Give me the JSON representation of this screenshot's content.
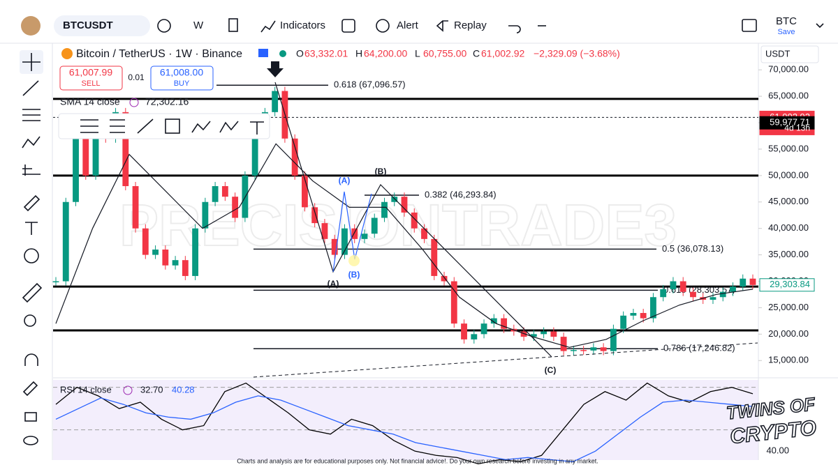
{
  "toolbar": {
    "symbol": "BTCUSDT",
    "interval": "W",
    "indicators": "Indicators",
    "alert": "Alert",
    "replay": "Replay",
    "account": "BTC",
    "save": "Save"
  },
  "legend": {
    "title": "Bitcoin / TetherUS · 1W · Binance",
    "o": "O",
    "open": "63,332.01",
    "h": "H",
    "high": "64,200.00",
    "l": "L",
    "low": "60,755.00",
    "c": "C",
    "close": "61,002.92",
    "change": "−2,329.09 (−3.68%)"
  },
  "trade": {
    "sell_price": "61,007.99",
    "sell": "SELL",
    "qty": "0.01",
    "buy_price": "61,008.00",
    "buy": "BUY"
  },
  "sma": {
    "label": "SMA 14 close",
    "value": "72,302.16"
  },
  "rsi": {
    "label": "RSI 14 close",
    "value1": "32.70",
    "value2": "40.28"
  },
  "currency": "USDT",
  "countdown": "4d 13h",
  "watermark": "PRECISIONTRADE3",
  "logo": [
    "TWINS OF",
    "CRYPTO"
  ],
  "wave_labels": [
    "(A)",
    "(B)",
    "(C)",
    "(A)",
    "(B)"
  ],
  "disclaimer": "Charts and analysis are for educational purposes only. Not financial advice!. Do your own research before investing in any market.",
  "chart_data": [
    {
      "type": "candlestick",
      "values": [
        30000,
        45000,
        58000,
        50000,
        60000,
        57000,
        62000,
        48000,
        40000,
        35000,
        36000,
        33000,
        34000,
        31000,
        40000,
        45000,
        48000,
        46000,
        42000,
        50000,
        60000,
        62000,
        66000,
        57000,
        50000,
        44000,
        41000,
        38000,
        35000,
        40000,
        38000,
        39000,
        42000,
        45000,
        46000,
        43000,
        40000,
        38000,
        31000,
        30000,
        22000,
        19000,
        20000,
        22000,
        23000,
        21000,
        20500,
        19500,
        20000,
        20500,
        19500,
        16800,
        17000,
        16900,
        17500,
        16800,
        21000,
        23500,
        24000,
        23000,
        27000,
        28500,
        30000,
        28000,
        27000,
        26500,
        27000,
        28000,
        29000,
        30500,
        29300
      ],
      "up_color": "#089981",
      "down_color": "#f23645",
      "sma": [
        22000,
        40000,
        54000,
        47000,
        40000,
        44000,
        56000,
        49000,
        44000,
        44000,
        36000,
        27000,
        22000,
        19500,
        17500,
        19000,
        22500,
        25500,
        27500,
        28500
      ],
      "ylim": [
        12000,
        75300
      ],
      "yticks": [
        {
          "value": 15000,
          "label": "15,000.00"
        },
        {
          "value": 20000,
          "label": "20,000.00"
        },
        {
          "value": 25000,
          "label": "25,000.00"
        },
        {
          "value": 30000,
          "label": "30,000.00"
        },
        {
          "value": 35000,
          "label": "35,000.00"
        },
        {
          "value": 40000,
          "label": "40,000.00"
        },
        {
          "value": 45000,
          "label": "45,000.00"
        },
        {
          "value": 50000,
          "label": "50,000.00"
        },
        {
          "value": 55000,
          "label": "55,000.00"
        },
        {
          "value": 60000,
          "label": "60,000.00"
        },
        {
          "value": 65000,
          "label": "65,000.00"
        },
        {
          "value": 70000,
          "label": "70,000.00"
        }
      ],
      "hlines": [
        64500,
        50000,
        29000,
        20700
      ],
      "levels": [
        {
          "value": 67096.57,
          "label": "0.618 (67,096.57)"
        },
        {
          "value": 46293.84,
          "label": "0.382 (46,293.84)"
        },
        {
          "value": 36078.13,
          "label": "0.5 (36,078.13)"
        },
        {
          "value": 28303.57,
          "label": "0.618 (28,303.57)"
        },
        {
          "value": 17246.82,
          "label": "0.786 (17,246.82)"
        }
      ],
      "price_labels": [
        {
          "value": 61002.92,
          "label": "61,002.92",
          "color": "#f23645"
        },
        {
          "value": 59977.71,
          "label": "59,977.71",
          "color": "#000000"
        },
        {
          "value": 29303.84,
          "label": "29,303.84",
          "color": "#089981"
        }
      ]
    },
    {
      "type": "line",
      "series": [
        {
          "color": "#000000",
          "values": [
            62,
            70,
            66,
            60,
            63,
            55,
            50,
            52,
            68,
            72,
            65,
            58,
            50,
            48,
            55,
            52,
            45,
            40,
            38,
            37,
            34,
            36,
            35,
            38,
            50,
            62,
            68,
            64,
            72,
            66,
            63,
            68,
            70,
            67
          ]
        },
        {
          "color": "#2962ff",
          "values": [
            55,
            60,
            65,
            62,
            58,
            56,
            55,
            58,
            63,
            66,
            64,
            60,
            56,
            52,
            50,
            48,
            44,
            42,
            40,
            38,
            36,
            37,
            36,
            35,
            40,
            48,
            56,
            63,
            64,
            63,
            62,
            61
          ]
        }
      ],
      "bands": [
        70,
        50
      ],
      "ylim": [
        35.8,
        73.5
      ],
      "yticks": [
        {
          "value": 40,
          "label": "40.00"
        }
      ]
    }
  ]
}
